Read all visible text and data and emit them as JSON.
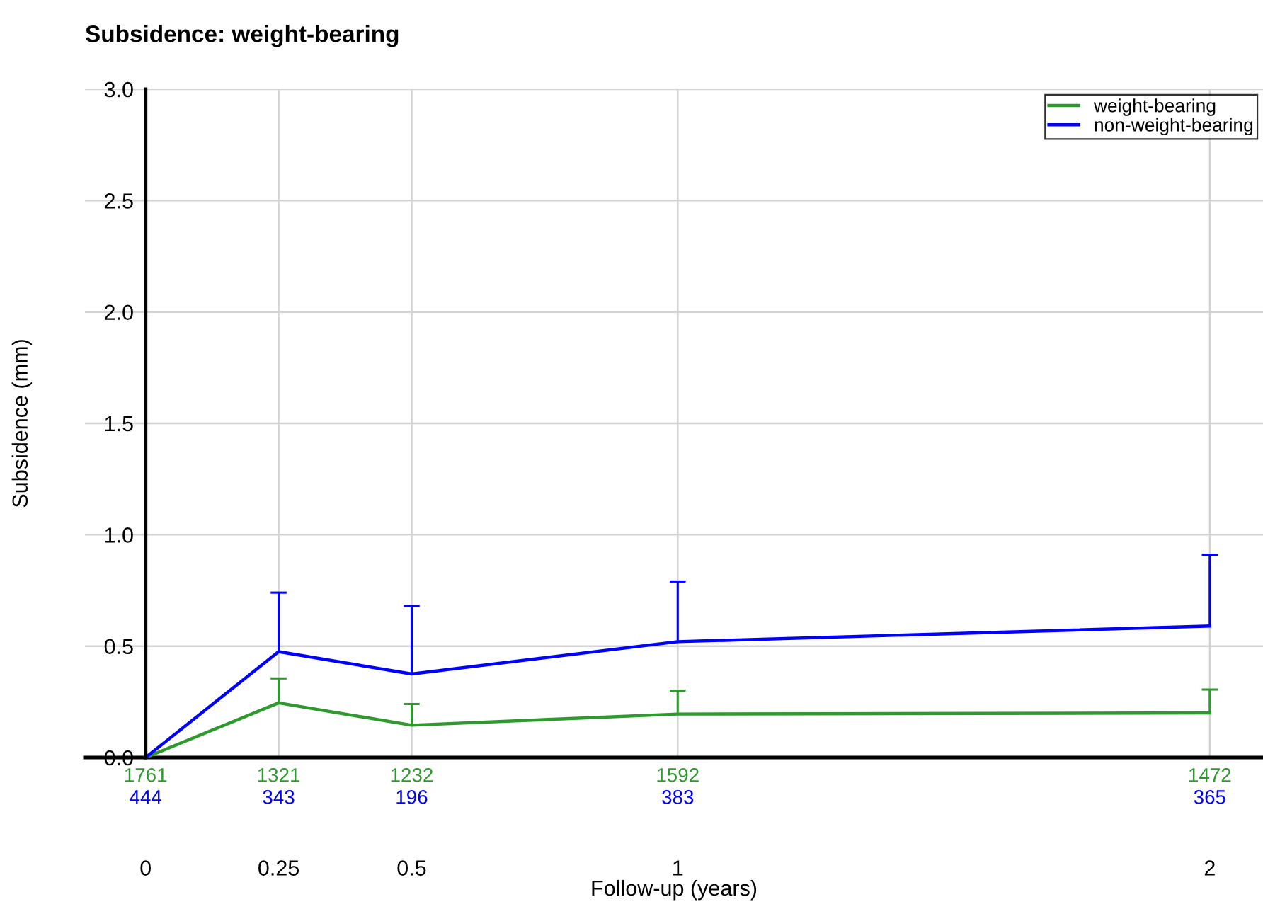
{
  "chart_data": {
    "type": "line",
    "title": "Subsidence: weight-bearing",
    "xlabel": "Follow-up (years)",
    "ylabel": "Subsidence (mm)",
    "x": [
      0,
      0.25,
      0.5,
      1,
      2
    ],
    "series": [
      {
        "name": "weight-bearing",
        "color": "#2e9a2e",
        "values": [
          0,
          0.245,
          0.145,
          0.195,
          0.2
        ],
        "errors": [
          null,
          [
            0.245,
            0.355
          ],
          [
            0.145,
            0.24
          ],
          [
            0.195,
            0.3
          ],
          [
            0.2,
            0.305
          ]
        ]
      },
      {
        "name": "non-weight-bearing",
        "color": "#0000ff",
        "values": [
          0,
          0.475,
          0.375,
          0.52,
          0.59
        ],
        "errors": [
          null,
          [
            0.475,
            0.74
          ],
          [
            0.375,
            0.68
          ],
          [
            0.52,
            0.79
          ],
          [
            0.59,
            0.91
          ]
        ]
      }
    ],
    "annotations": [
      "1761",
      "1321",
      "1232",
      "1592",
      "1472",
      "444",
      "343",
      "196",
      "383",
      "365"
    ],
    "xlim": [
      -0.114,
      2.1
    ],
    "ylim": [
      0,
      3.0
    ],
    "xticks": [
      0,
      0.25,
      0.5,
      1,
      2
    ],
    "yticks": [
      {
        "value": 0,
        "label": "0.0"
      },
      {
        "value": 0.5,
        "label": "0.5"
      },
      {
        "value": 1,
        "label": "1.0"
      },
      {
        "value": 1.5,
        "label": "1.5"
      },
      {
        "value": 2,
        "label": "2.0"
      },
      {
        "value": 2.5,
        "label": "2.5"
      },
      {
        "value": 3,
        "label": "3.0"
      }
    ],
    "grid": true,
    "legend": "top right",
    "marker": "none",
    "line_style": "solid"
  }
}
